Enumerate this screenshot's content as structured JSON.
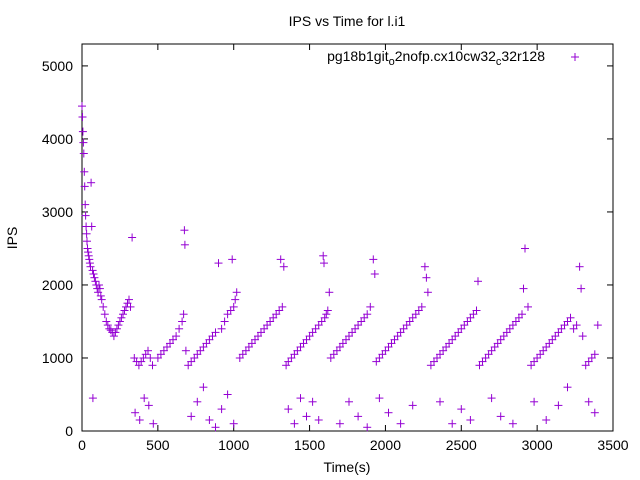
{
  "chart_data": {
    "type": "scatter",
    "title": "IPS vs Time for l.i1",
    "xlabel": "Time(s)",
    "ylabel": "IPS",
    "xlim": [
      0,
      3500
    ],
    "ylim": [
      0,
      5300
    ],
    "x_ticks": [
      0,
      500,
      1000,
      1500,
      2000,
      2500,
      3000,
      3500
    ],
    "x_tick_labels": [
      "0",
      "500",
      "1000",
      "1500",
      "2000",
      "2500",
      "3000",
      "3500"
    ],
    "y_ticks": [
      0,
      1000,
      2000,
      3000,
      4000,
      5000
    ],
    "y_tick_labels": [
      "0",
      "1000",
      "2000",
      "3000",
      "4000",
      "5000"
    ],
    "grid": false,
    "legend_position": "top-right",
    "colors": {
      "series": "#9400d3",
      "axis": "#000000"
    },
    "series": [
      {
        "name_parts": {
          "a": "pg18b1git",
          "b": "o",
          "c": "2nofp.cx10cw32",
          "d": "c",
          "e": "32r128"
        },
        "marker": "plus",
        "points": [
          [
            0,
            4450
          ],
          [
            3,
            4300
          ],
          [
            6,
            4100
          ],
          [
            9,
            3950
          ],
          [
            12,
            3800
          ],
          [
            15,
            3550
          ],
          [
            18,
            3350
          ],
          [
            21,
            3100
          ],
          [
            24,
            2950
          ],
          [
            27,
            2800
          ],
          [
            30,
            2700
          ],
          [
            33,
            2600
          ],
          [
            36,
            2500
          ],
          [
            40,
            2450
          ],
          [
            44,
            2400
          ],
          [
            48,
            2350
          ],
          [
            52,
            2300
          ],
          [
            56,
            2250
          ],
          [
            60,
            3400
          ],
          [
            64,
            2800
          ],
          [
            70,
            2200
          ],
          [
            76,
            2150
          ],
          [
            82,
            2100
          ],
          [
            88,
            2050
          ],
          [
            94,
            2000
          ],
          [
            100,
            1950
          ],
          [
            106,
            1900
          ],
          [
            112,
            2000
          ],
          [
            118,
            1950
          ],
          [
            124,
            1850
          ],
          [
            130,
            1800
          ],
          [
            72,
            450
          ],
          [
            140,
            1700
          ],
          [
            150,
            1600
          ],
          [
            160,
            1500
          ],
          [
            170,
            1450
          ],
          [
            180,
            1400
          ],
          [
            190,
            1380
          ],
          [
            200,
            1350
          ],
          [
            210,
            1300
          ],
          [
            220,
            1350
          ],
          [
            230,
            1400
          ],
          [
            240,
            1450
          ],
          [
            250,
            1500
          ],
          [
            260,
            1550
          ],
          [
            270,
            1600
          ],
          [
            280,
            1650
          ],
          [
            290,
            1700
          ],
          [
            300,
            1750
          ],
          [
            310,
            1800
          ],
          [
            320,
            1700
          ],
          [
            330,
            2650
          ],
          [
            345,
            1000
          ],
          [
            360,
            950
          ],
          [
            375,
            900
          ],
          [
            390,
            950
          ],
          [
            405,
            1000
          ],
          [
            420,
            1050
          ],
          [
            435,
            1100
          ],
          [
            450,
            1000
          ],
          [
            465,
            900
          ],
          [
            350,
            250
          ],
          [
            380,
            150
          ],
          [
            410,
            450
          ],
          [
            440,
            350
          ],
          [
            470,
            100
          ],
          [
            500,
            1000
          ],
          [
            520,
            1050
          ],
          [
            540,
            1100
          ],
          [
            560,
            1150
          ],
          [
            580,
            1200
          ],
          [
            600,
            1250
          ],
          [
            620,
            1300
          ],
          [
            640,
            1400
          ],
          [
            660,
            1500
          ],
          [
            670,
            1600
          ],
          [
            675,
            2750
          ],
          [
            678,
            2550
          ],
          [
            685,
            1100
          ],
          [
            700,
            900
          ],
          [
            720,
            950
          ],
          [
            740,
            1000
          ],
          [
            760,
            1050
          ],
          [
            780,
            1100
          ],
          [
            800,
            1150
          ],
          [
            820,
            1200
          ],
          [
            840,
            1250
          ],
          [
            860,
            1300
          ],
          [
            880,
            1350
          ],
          [
            900,
            2300
          ],
          [
            920,
            1400
          ],
          [
            940,
            1500
          ],
          [
            960,
            1600
          ],
          [
            980,
            1650
          ],
          [
            990,
            2350
          ],
          [
            1000,
            1700
          ],
          [
            1010,
            1800
          ],
          [
            1020,
            1900
          ],
          [
            720,
            200
          ],
          [
            760,
            400
          ],
          [
            800,
            600
          ],
          [
            840,
            150
          ],
          [
            880,
            50
          ],
          [
            920,
            300
          ],
          [
            960,
            500
          ],
          [
            1000,
            100
          ],
          [
            1040,
            1000
          ],
          [
            1060,
            1050
          ],
          [
            1080,
            1100
          ],
          [
            1100,
            1150
          ],
          [
            1120,
            1200
          ],
          [
            1140,
            1250
          ],
          [
            1160,
            1300
          ],
          [
            1180,
            1350
          ],
          [
            1200,
            1400
          ],
          [
            1220,
            1450
          ],
          [
            1240,
            1500
          ],
          [
            1260,
            1550
          ],
          [
            1280,
            1600
          ],
          [
            1300,
            1650
          ],
          [
            1310,
            2350
          ],
          [
            1320,
            1700
          ],
          [
            1330,
            2250
          ],
          [
            1345,
            900
          ],
          [
            1360,
            950
          ],
          [
            1380,
            1000
          ],
          [
            1400,
            1050
          ],
          [
            1420,
            1100
          ],
          [
            1440,
            1150
          ],
          [
            1460,
            1200
          ],
          [
            1480,
            1250
          ],
          [
            1500,
            1300
          ],
          [
            1520,
            1350
          ],
          [
            1540,
            1400
          ],
          [
            1560,
            1450
          ],
          [
            1580,
            1500
          ],
          [
            1590,
            2400
          ],
          [
            1595,
            2300
          ],
          [
            1600,
            1550
          ],
          [
            1610,
            1600
          ],
          [
            1620,
            1650
          ],
          [
            1630,
            1900
          ],
          [
            1360,
            300
          ],
          [
            1400,
            100
          ],
          [
            1440,
            450
          ],
          [
            1480,
            200
          ],
          [
            1520,
            400
          ],
          [
            1560,
            150
          ],
          [
            1640,
            1000
          ],
          [
            1660,
            1050
          ],
          [
            1680,
            1100
          ],
          [
            1700,
            1150
          ],
          [
            1720,
            1200
          ],
          [
            1740,
            1250
          ],
          [
            1760,
            1300
          ],
          [
            1780,
            1350
          ],
          [
            1800,
            1400
          ],
          [
            1820,
            1450
          ],
          [
            1840,
            1500
          ],
          [
            1860,
            1550
          ],
          [
            1880,
            1600
          ],
          [
            1900,
            1700
          ],
          [
            1920,
            2350
          ],
          [
            1930,
            2150
          ],
          [
            1940,
            950
          ],
          [
            1960,
            1000
          ],
          [
            1980,
            1050
          ],
          [
            2000,
            1100
          ],
          [
            2020,
            1150
          ],
          [
            2040,
            1200
          ],
          [
            2060,
            1250
          ],
          [
            2080,
            1300
          ],
          [
            2100,
            1350
          ],
          [
            2120,
            1400
          ],
          [
            2140,
            1450
          ],
          [
            2160,
            1500
          ],
          [
            2180,
            1550
          ],
          [
            2200,
            1600
          ],
          [
            2220,
            1650
          ],
          [
            2240,
            1700
          ],
          [
            2260,
            2250
          ],
          [
            2270,
            2100
          ],
          [
            2280,
            1900
          ],
          [
            1700,
            100
          ],
          [
            1760,
            400
          ],
          [
            1820,
            200
          ],
          [
            1880,
            50
          ],
          [
            1960,
            450
          ],
          [
            2020,
            250
          ],
          [
            2100,
            100
          ],
          [
            2180,
            350
          ],
          [
            2300,
            900
          ],
          [
            2320,
            950
          ],
          [
            2340,
            1000
          ],
          [
            2360,
            1050
          ],
          [
            2380,
            1100
          ],
          [
            2400,
            1150
          ],
          [
            2420,
            1200
          ],
          [
            2440,
            1250
          ],
          [
            2460,
            1300
          ],
          [
            2480,
            1350
          ],
          [
            2500,
            1400
          ],
          [
            2520,
            1450
          ],
          [
            2540,
            1500
          ],
          [
            2560,
            1550
          ],
          [
            2580,
            1600
          ],
          [
            2600,
            1650
          ],
          [
            2610,
            2050
          ],
          [
            2620,
            900
          ],
          [
            2640,
            950
          ],
          [
            2660,
            1000
          ],
          [
            2680,
            1050
          ],
          [
            2700,
            1100
          ],
          [
            2720,
            1150
          ],
          [
            2740,
            1200
          ],
          [
            2760,
            1250
          ],
          [
            2780,
            1300
          ],
          [
            2800,
            1350
          ],
          [
            2820,
            1400
          ],
          [
            2840,
            1450
          ],
          [
            2860,
            1500
          ],
          [
            2880,
            1550
          ],
          [
            2900,
            1600
          ],
          [
            2910,
            1950
          ],
          [
            2920,
            2500
          ],
          [
            2940,
            1700
          ],
          [
            2960,
            900
          ],
          [
            2980,
            950
          ],
          [
            3000,
            1000
          ],
          [
            3020,
            1050
          ],
          [
            3040,
            1100
          ],
          [
            3060,
            1150
          ],
          [
            3080,
            1200
          ],
          [
            3100,
            1250
          ],
          [
            3120,
            1300
          ],
          [
            3140,
            1350
          ],
          [
            3160,
            1400
          ],
          [
            3180,
            1450
          ],
          [
            3200,
            1500
          ],
          [
            3220,
            1550
          ],
          [
            3240,
            1400
          ],
          [
            3260,
            1450
          ],
          [
            3280,
            2250
          ],
          [
            3290,
            1950
          ],
          [
            3300,
            1300
          ],
          [
            3320,
            900
          ],
          [
            3340,
            950
          ],
          [
            3360,
            1000
          ],
          [
            3380,
            1050
          ],
          [
            3400,
            1450
          ],
          [
            2360,
            400
          ],
          [
            2440,
            100
          ],
          [
            2500,
            300
          ],
          [
            2560,
            150
          ],
          [
            2700,
            450
          ],
          [
            2760,
            200
          ],
          [
            2840,
            100
          ],
          [
            2980,
            400
          ],
          [
            3060,
            150
          ],
          [
            3140,
            350
          ],
          [
            3200,
            600
          ],
          [
            3340,
            400
          ],
          [
            3380,
            250
          ]
        ]
      }
    ]
  }
}
